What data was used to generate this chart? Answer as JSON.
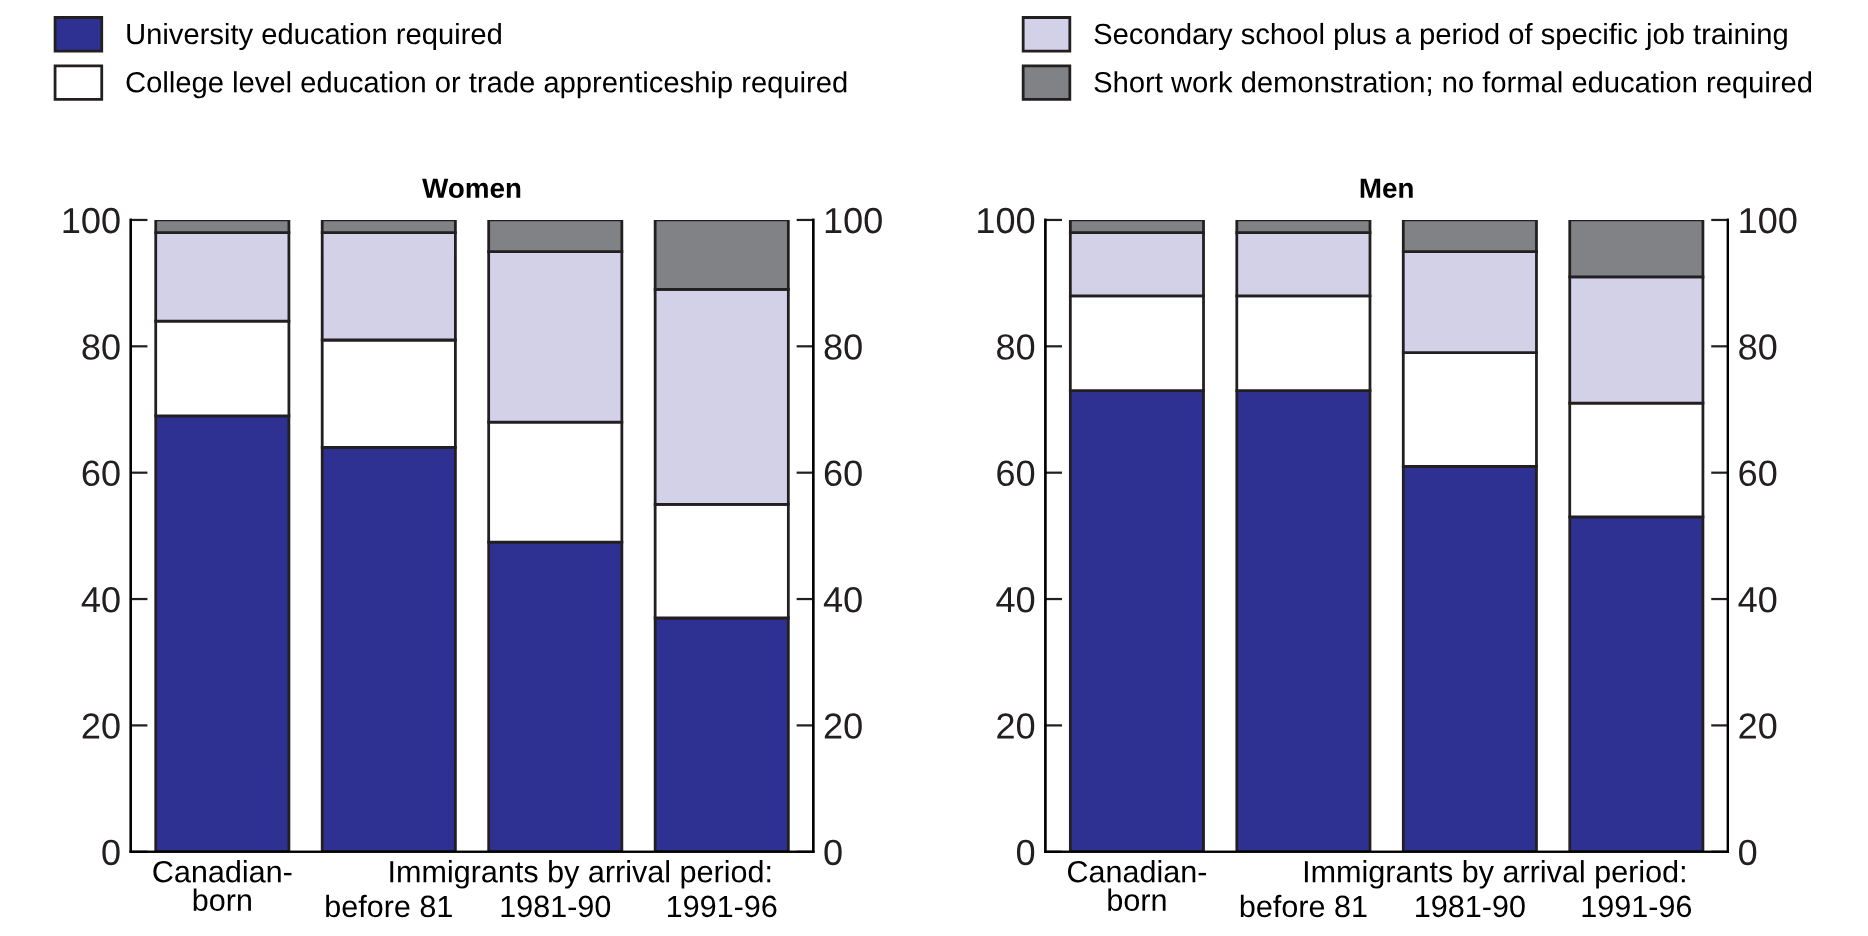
{
  "chart_data": [
    {
      "type": "bar",
      "title": "Women",
      "stacked": true,
      "legend": "top",
      "categories": [
        "Canadian-\nborn",
        "before 81",
        "1981-90",
        "1991-96"
      ],
      "annotations": [
        "Immigrants by arrival period:"
      ],
      "ylim": [
        0,
        100
      ],
      "yticks": [
        0,
        20,
        40,
        60,
        80,
        100
      ],
      "y2lim": [
        0,
        100
      ],
      "y2ticks": [
        0,
        20,
        40,
        60,
        80,
        100
      ],
      "series": [
        {
          "name": "University education required",
          "color": "#2e3192",
          "values": [
            69,
            64,
            49,
            37
          ]
        },
        {
          "name": "College level education or trade apprenticeship required",
          "color": "#ffffff",
          "values": [
            15,
            17,
            19,
            18
          ]
        },
        {
          "name": "Secondary school plus a period of specific job training",
          "color": "#d3d1e8",
          "values": [
            14,
            17,
            27,
            34
          ]
        },
        {
          "name": "Short work demonstration; no formal education required",
          "color": "#808285",
          "values": [
            2,
            2,
            5,
            11
          ]
        }
      ]
    },
    {
      "type": "bar",
      "title": "Men",
      "stacked": true,
      "categories": [
        "Canadian-\nborn",
        "before 81",
        "1981-90",
        "1991-96"
      ],
      "annotations": [
        "Immigrants by arrival period:"
      ],
      "ylim": [
        0,
        100
      ],
      "yticks": [
        0,
        20,
        40,
        60,
        80,
        100
      ],
      "y2lim": [
        0,
        100
      ],
      "y2ticks": [
        0,
        20,
        40,
        60,
        80,
        100
      ],
      "series": [
        {
          "color": "#2e3192",
          "values": [
            73,
            73,
            61,
            53
          ]
        },
        {
          "color": "#ffffff",
          "values": [
            15,
            15,
            18,
            18
          ]
        },
        {
          "color": "#d3d1e8",
          "values": [
            10,
            10,
            16,
            20
          ]
        },
        {
          "color": "#808285",
          "values": [
            2,
            2,
            5,
            9
          ]
        }
      ]
    }
  ]
}
